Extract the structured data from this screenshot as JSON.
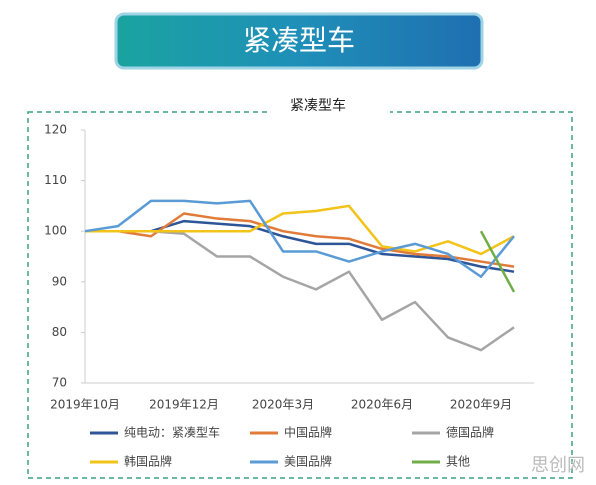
{
  "header": {
    "title": "紧凑型车"
  },
  "chart_data": {
    "type": "line",
    "title": "紧凑型车",
    "categories": [
      "2019年10月",
      null,
      null,
      "2019年12月",
      null,
      null,
      "2020年3月",
      null,
      null,
      "2020年6月",
      null,
      null,
      "2020年9月",
      null
    ],
    "ylim": [
      70,
      120
    ],
    "yticks": [
      70,
      80,
      90,
      100,
      110,
      120
    ],
    "grid": false,
    "series": [
      {
        "name": "纯电动：紧凑型车",
        "color": "#2e5597",
        "values": [
          100,
          100,
          100,
          102,
          101.5,
          101,
          99,
          97.5,
          97.5,
          95.5,
          95,
          94.5,
          93,
          92
        ]
      },
      {
        "name": "中国品牌",
        "color": "#e07b39",
        "values": [
          100,
          100,
          99,
          103.5,
          102.5,
          102,
          100,
          99,
          98.5,
          96.5,
          95.5,
          95,
          94,
          93
        ]
      },
      {
        "name": "德国品牌",
        "color": "#a5a5a5",
        "values": [
          100,
          100,
          100,
          99.5,
          95,
          95,
          91,
          88.5,
          92,
          82.5,
          86,
          79,
          76.5,
          81
        ]
      },
      {
        "name": "韩国品牌",
        "color": "#f2c318",
        "values": [
          100,
          100,
          100,
          100,
          100,
          100,
          103.5,
          104,
          105,
          97,
          96,
          98,
          95.5,
          99
        ]
      },
      {
        "name": "美国品牌",
        "color": "#5b9bd5",
        "values": [
          100,
          101,
          106,
          106,
          105.5,
          106,
          96,
          96,
          94,
          96,
          97.5,
          95.5,
          91,
          99
        ]
      },
      {
        "name": "其他",
        "color": "#70ad47",
        "values": [
          null,
          null,
          null,
          null,
          null,
          null,
          null,
          null,
          null,
          null,
          null,
          null,
          100,
          88
        ]
      }
    ]
  },
  "watermark": "思创网"
}
